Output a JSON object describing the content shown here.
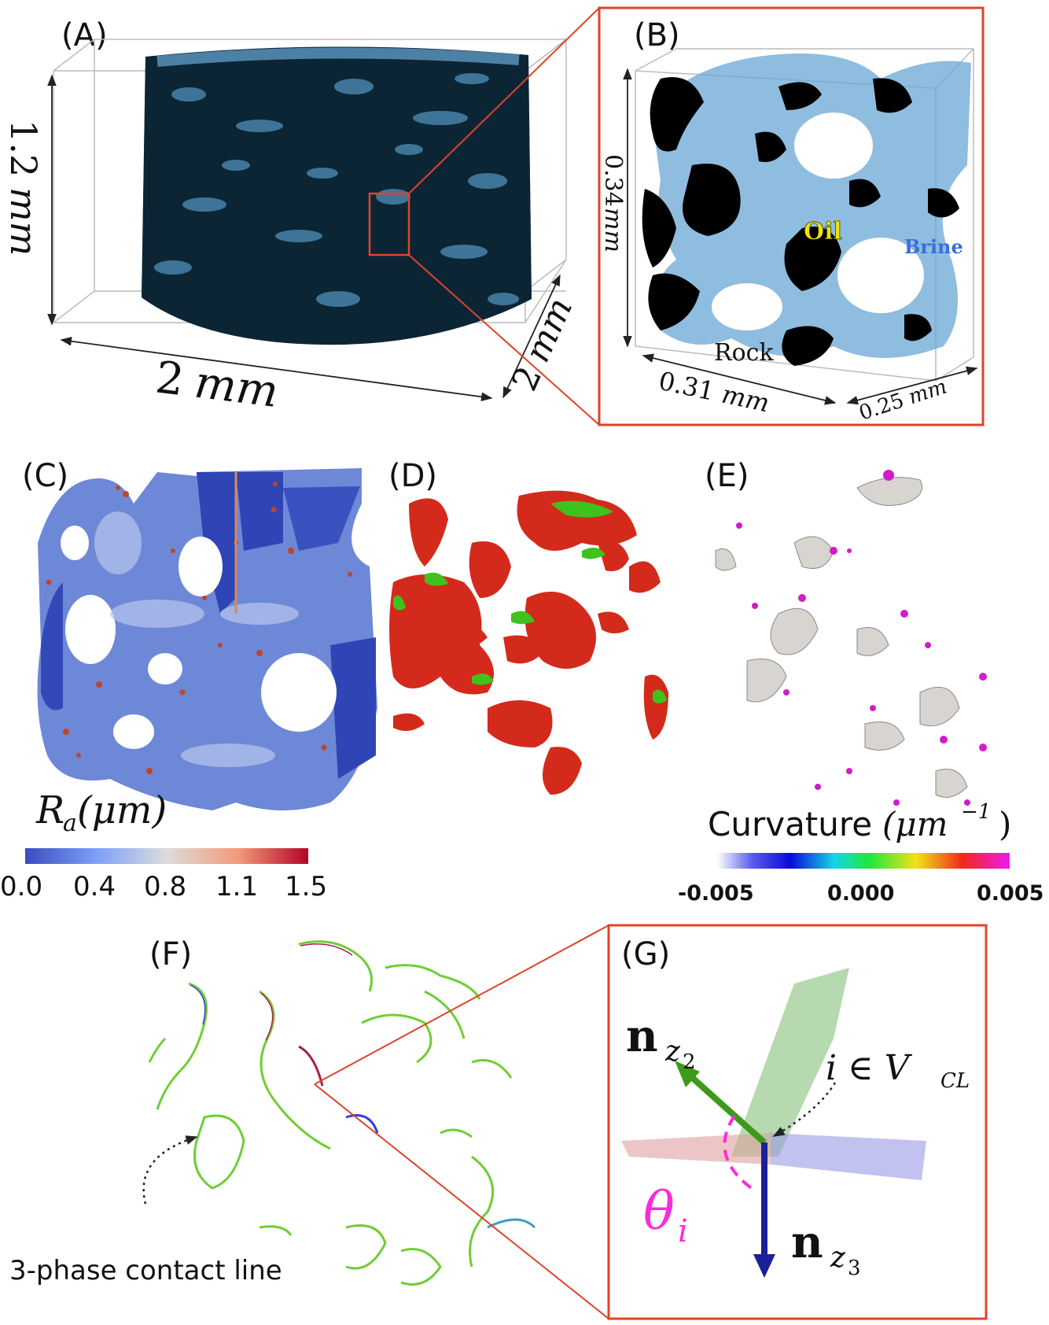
{
  "colors": {
    "frame_red": "#e0432a",
    "brine": "#6aa7d6",
    "rock": "#000000",
    "oil_label": "#f2e300",
    "brine_label": "#3a6de0",
    "surface_red": "#d42a1c",
    "surface_green": "#3fc21d",
    "curv_magenta": "#d21cc9",
    "arrow_green": "#3e9a1a",
    "arrow_blue": "#1a1f9a",
    "theta_magenta": "#ff2ad9"
  },
  "panels": {
    "A": {
      "label": "(A)",
      "height_dim": "1.2",
      "height_unit": "mm",
      "width_dim": "2",
      "width_unit": "mm",
      "depth_dim": "2",
      "depth_unit": "mm"
    },
    "B": {
      "label": "(B)",
      "height_dim": "0.34",
      "height_unit": "mm",
      "width_dim": "0.31",
      "width_unit": "mm",
      "depth_dim": "0.25",
      "depth_unit": "mm",
      "oil": "Oil",
      "brine": "Brine",
      "rock": "Rock"
    },
    "C": {
      "label": "(C)",
      "cb_symbol": "R",
      "cb_sub": "a",
      "cb_unit": "(μm)",
      "ticks": [
        "0.0",
        "0.4",
        "0.8",
        "1.1",
        "1.5"
      ]
    },
    "D": {
      "label": "(D)"
    },
    "E": {
      "label": "(E)",
      "cb_title": "Curvature",
      "cb_unit": "(μm",
      "cb_exp": "−1",
      "cb_close": ")",
      "ticks": [
        "-0.005",
        "0.000",
        "0.005"
      ]
    },
    "F": {
      "label": "(F)",
      "annotation": "3-phase contact line"
    },
    "G": {
      "label": "(G)",
      "n_symbol": "n",
      "n_sub1": "z",
      "n_sub1_sub": "2",
      "n_sub2": "z",
      "n_sub2_sub": "3",
      "member": "i ∈ V",
      "member_sub": "CL",
      "theta": "θ",
      "theta_sub": "i"
    }
  }
}
